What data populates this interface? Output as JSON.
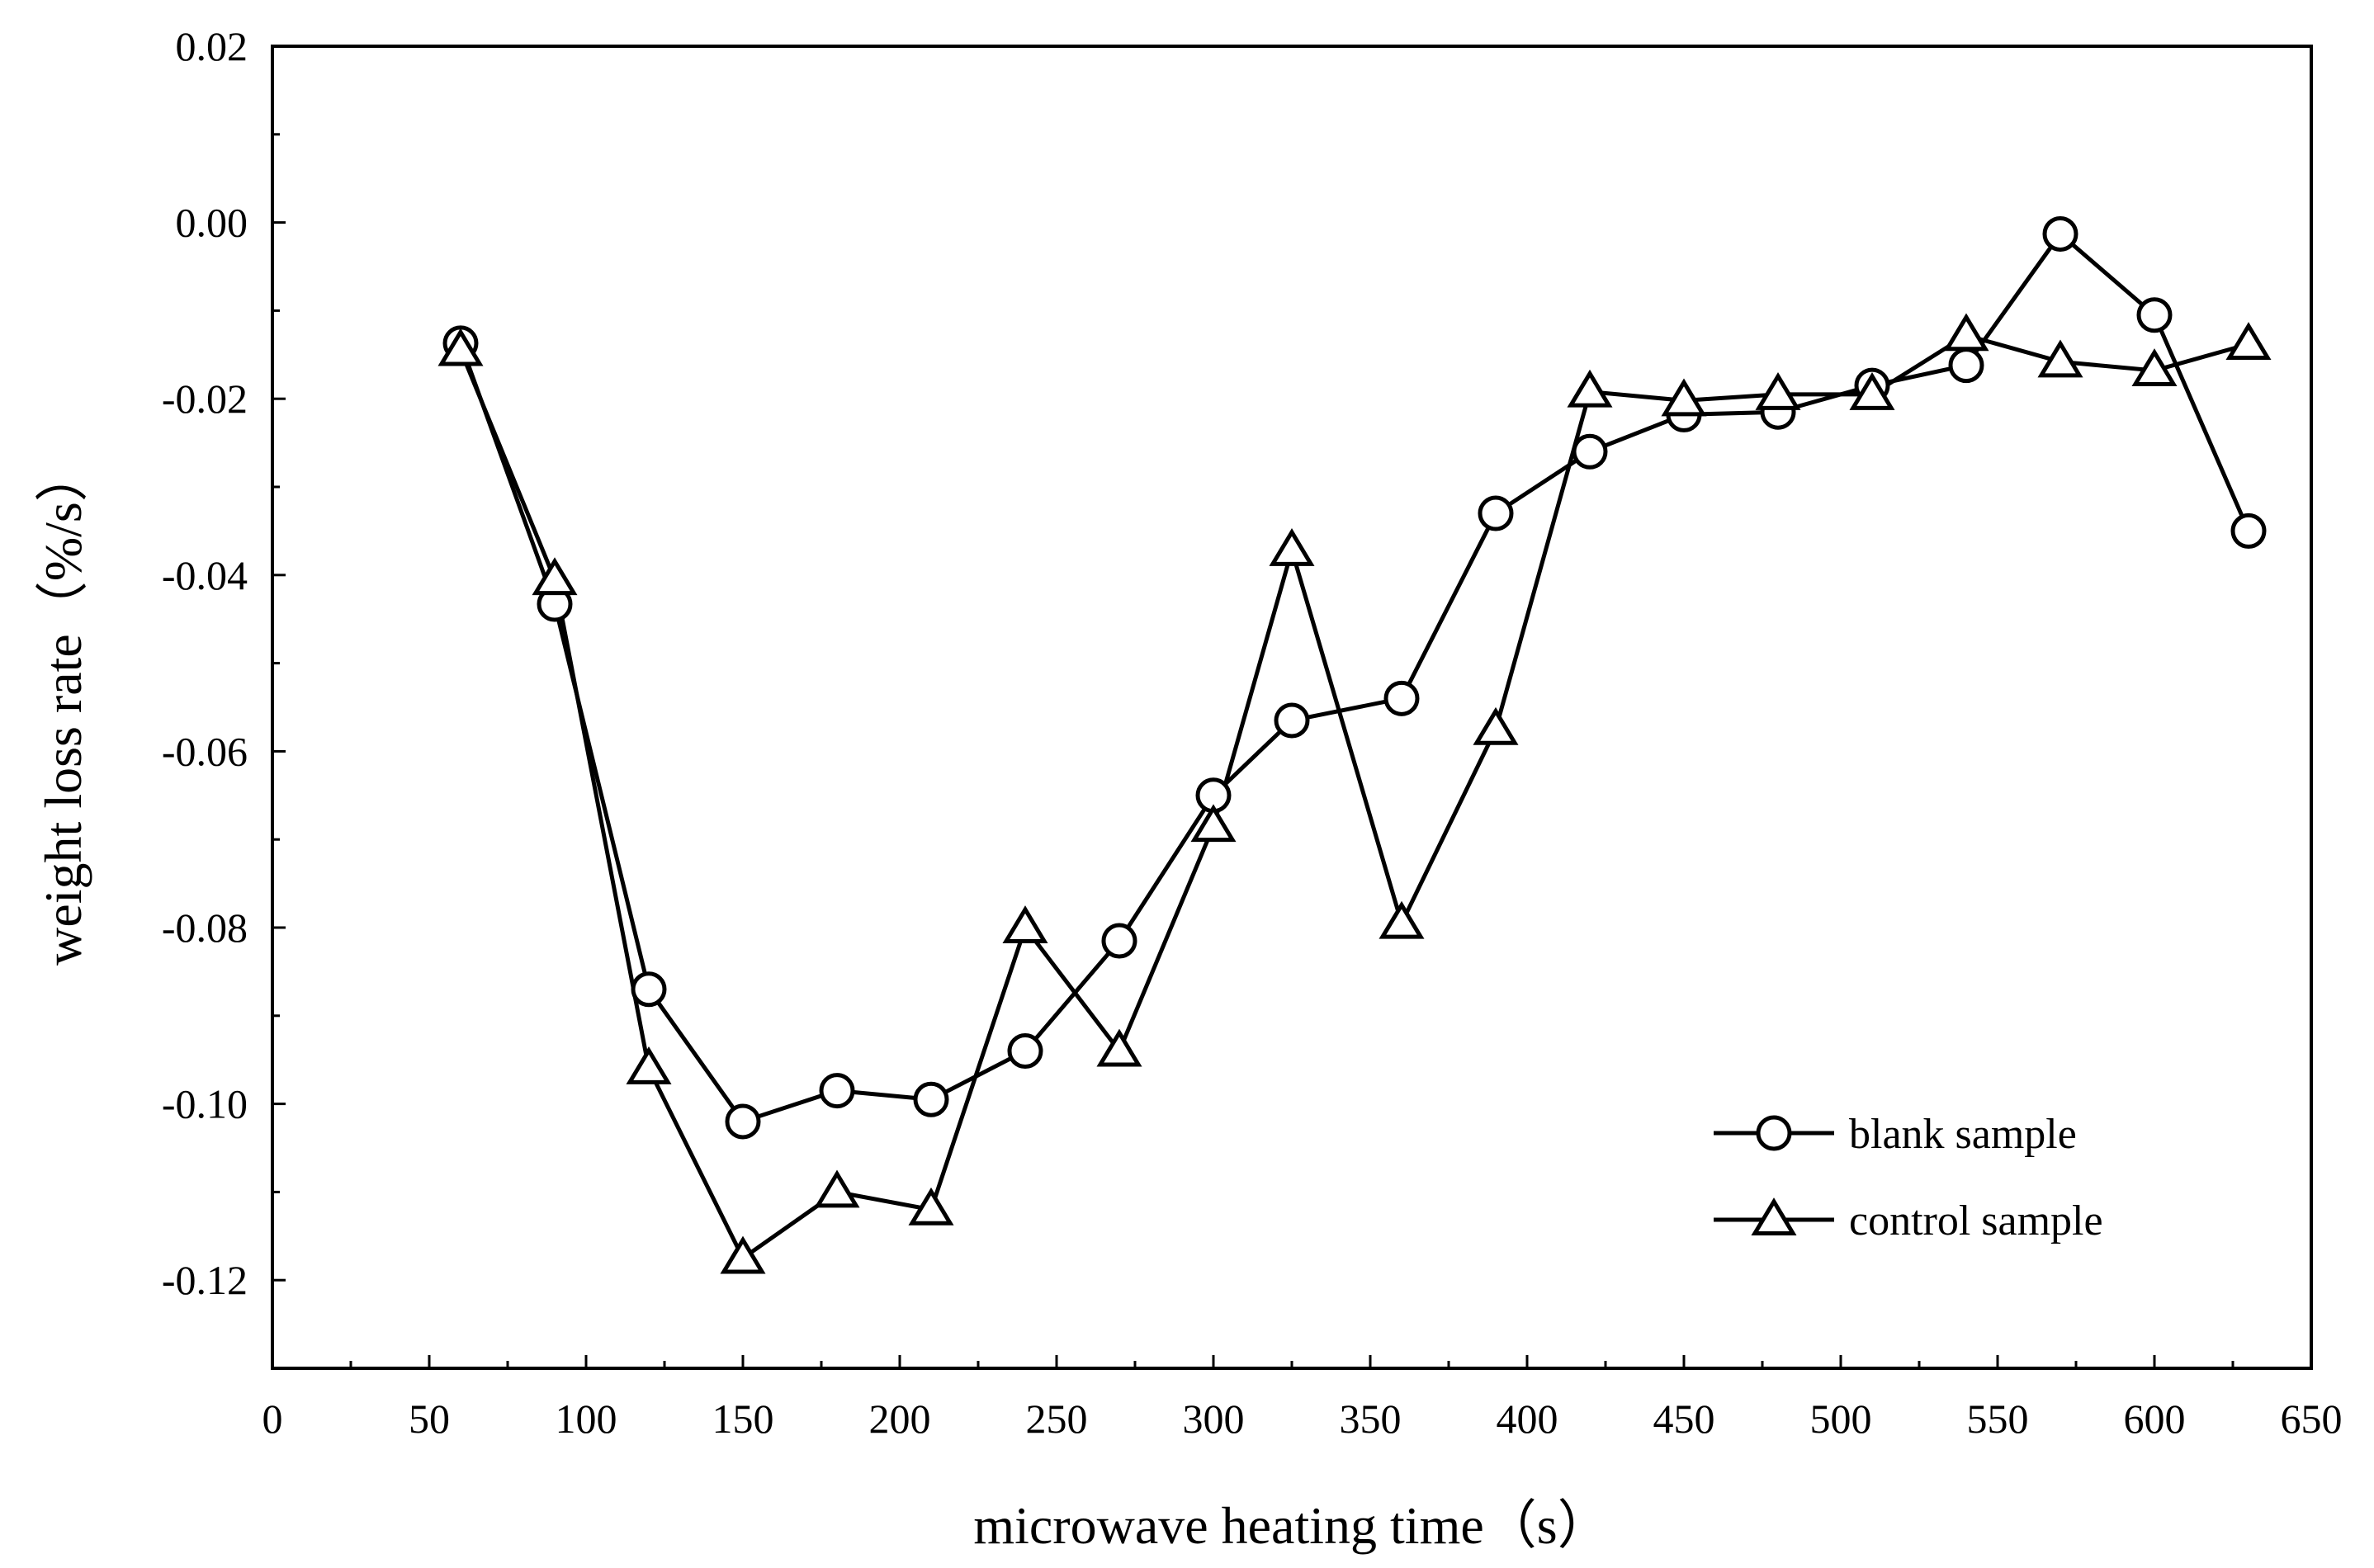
{
  "chart_data": {
    "type": "line",
    "title": "",
    "xlabel": "microwave heating time（s）",
    "ylabel": "weight loss rate（%/s）",
    "xlim": [
      0,
      650
    ],
    "ylim": [
      -0.13,
      0.02
    ],
    "xticks": [
      0,
      50,
      100,
      150,
      200,
      250,
      300,
      350,
      400,
      450,
      500,
      550,
      600,
      650
    ],
    "xtick_labels": [
      "0",
      "50",
      "100",
      "150",
      "200",
      "250",
      "300",
      "350",
      "400",
      "450",
      "500",
      "550",
      "600",
      "650"
    ],
    "yticks": [
      0.02,
      0.0,
      -0.02,
      -0.04,
      -0.06,
      -0.08,
      -0.1,
      -0.12
    ],
    "ytick_labels": [
      "0.02",
      "0.00",
      "-0.02",
      "-0.04",
      "-0.06",
      "-0.08",
      "-0.10",
      "-0.12"
    ],
    "grid": false,
    "legend_position": "bottom-right",
    "series": [
      {
        "name": "blank sample",
        "marker": "circle",
        "color": "#000000",
        "x": [
          60,
          90,
          120,
          150,
          180,
          210,
          240,
          270,
          300,
          325,
          360,
          390,
          420,
          450,
          480,
          510,
          540,
          570,
          600,
          630
        ],
        "y": [
          -0.0137,
          -0.0433,
          -0.087,
          -0.102,
          -0.0985,
          -0.0995,
          -0.094,
          -0.0815,
          -0.065,
          -0.0565,
          -0.054,
          -0.033,
          -0.026,
          -0.0218,
          -0.0215,
          -0.0185,
          -0.0162,
          -0.0013,
          -0.0105,
          -0.035
        ]
      },
      {
        "name": "control sample",
        "marker": "triangle",
        "color": "#000000",
        "x": [
          60,
          90,
          120,
          150,
          180,
          210,
          240,
          270,
          300,
          325,
          360,
          390,
          420,
          450,
          480,
          510,
          540,
          570,
          600,
          630
        ],
        "y": [
          -0.0145,
          -0.0405,
          -0.096,
          -0.1175,
          -0.11,
          -0.112,
          -0.08,
          -0.094,
          -0.0685,
          -0.0372,
          -0.0795,
          -0.0575,
          -0.0192,
          -0.0202,
          -0.0195,
          -0.0195,
          -0.0128,
          -0.0158,
          -0.0168,
          -0.0138
        ]
      }
    ]
  }
}
